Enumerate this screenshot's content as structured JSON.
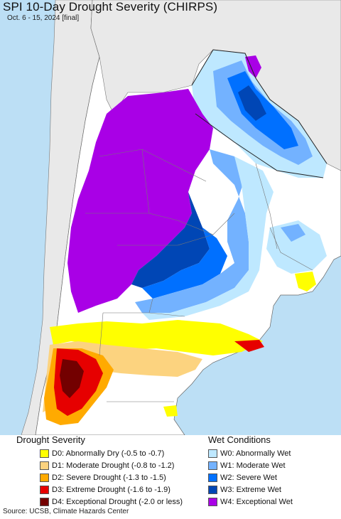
{
  "title": "SPI 10-Day Drought Severity (CHIRPS)",
  "subtitle": "Oct. 6 - 15, 2024 [final]",
  "legend": {
    "drought": {
      "heading": "Drought Severity",
      "items": [
        {
          "label": "D0: Abnormally Dry (-0.5 to -0.7)",
          "color": "#ffff00"
        },
        {
          "label": "D1: Moderate Drought (-0.8 to -1.2)",
          "color": "#fcd37f"
        },
        {
          "label": "D2: Severe Drought (-1.3 to -1.5)",
          "color": "#ffaa00"
        },
        {
          "label": "D3: Extreme Drought (-1.6 to -1.9)",
          "color": "#e60000"
        },
        {
          "label": "D4: Exceptional Drought (-2.0 or less)",
          "color": "#730000"
        }
      ]
    },
    "wet": {
      "heading": "Wet Conditions",
      "items": [
        {
          "label": "W0: Abnormally Wet",
          "color": "#bee8ff"
        },
        {
          "label": "W1: Moderate Wet",
          "color": "#73b2ff"
        },
        {
          "label": "W2: Severe Wet",
          "color": "#0070ff"
        },
        {
          "label": "W3: Extreme Wet",
          "color": "#0046b5"
        },
        {
          "label": "W4: Exceptional Wet",
          "color": "#a900e6"
        }
      ]
    }
  },
  "map": {
    "ocean_color": "#bcdff5",
    "land_color": "#ffffff",
    "outside_color": "#e9e9e9"
  },
  "footer": "Source: UCSB, Climate Hazards Center"
}
